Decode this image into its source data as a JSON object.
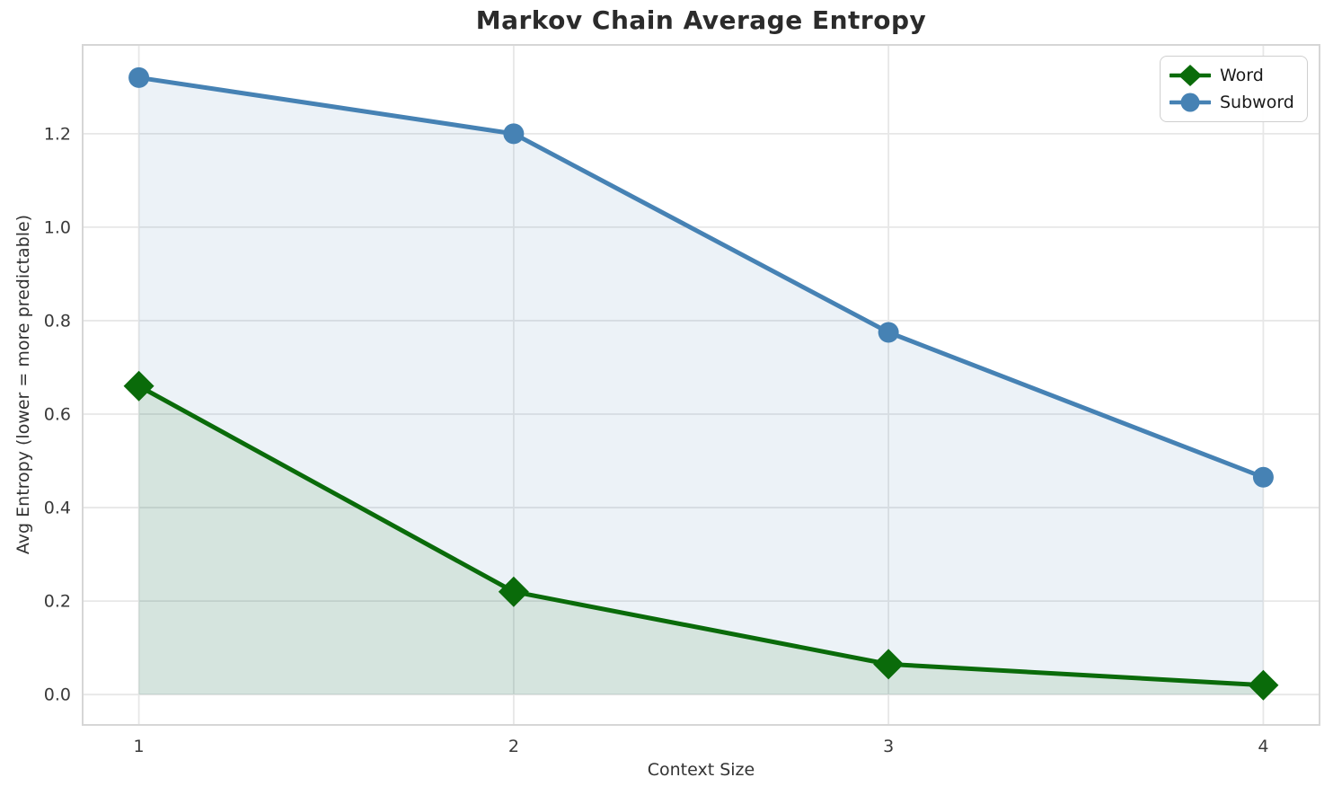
{
  "chart_data": {
    "type": "line",
    "title": "Markov Chain Average Entropy",
    "xlabel": "Context Size",
    "ylabel": "Avg Entropy (lower = more predictable)",
    "x": [
      1,
      2,
      3,
      4
    ],
    "series": [
      {
        "name": "Word",
        "values": [
          0.66,
          0.22,
          0.065,
          0.02
        ],
        "color": "#0a6b0a",
        "marker": "diamond",
        "fill": true,
        "fill_alpha": 0.1
      },
      {
        "name": "Subword",
        "values": [
          1.32,
          1.2,
          0.775,
          0.465
        ],
        "color": "#4682b4",
        "marker": "circle",
        "fill": true,
        "fill_alpha": 0.1
      }
    ],
    "x_ticks": [
      1,
      2,
      3,
      4
    ],
    "x_tick_labels": [
      "1",
      "2",
      "3",
      "4"
    ],
    "y_ticks": [
      0.0,
      0.2,
      0.4,
      0.6,
      0.8,
      1.0,
      1.2
    ],
    "y_tick_labels": [
      "0.0",
      "0.2",
      "0.4",
      "0.6",
      "0.8",
      "1.0",
      "1.2"
    ],
    "xlim": [
      0.85,
      4.15
    ],
    "ylim": [
      -0.065,
      1.39
    ],
    "grid": true,
    "legend_position": "upper right",
    "fill_baseline": 0.0
  },
  "palette": {
    "background": "#ffffff",
    "grid": "#e7e7e7",
    "spine": "#d6d6d6",
    "tick_text": "#3a3a3a",
    "label_text": "#333333",
    "title_text": "#2b2b2b",
    "legend_text": "#1a1a1a",
    "legend_border": "#cfcfcf"
  }
}
